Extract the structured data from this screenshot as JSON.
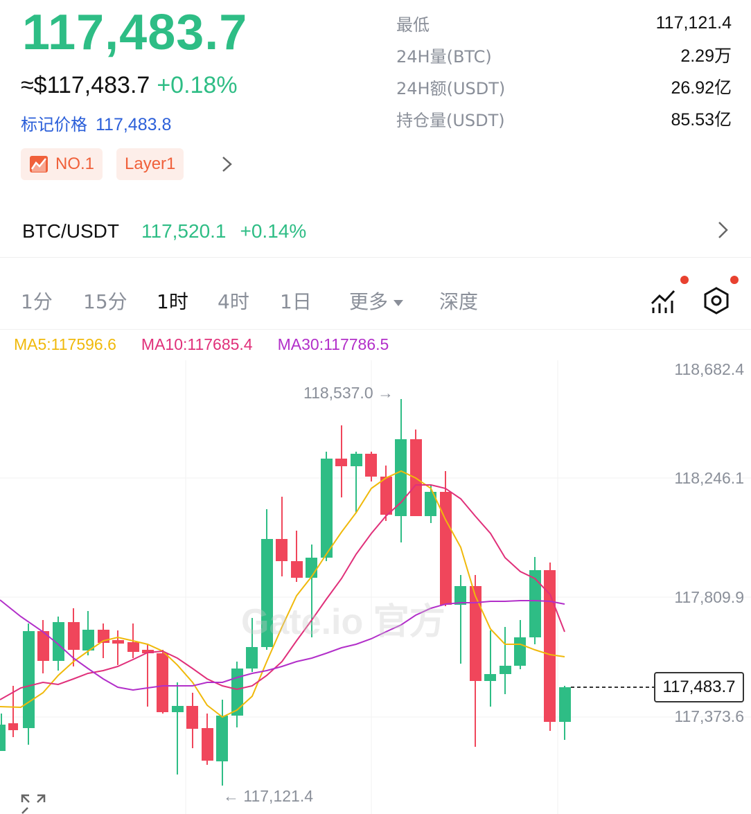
{
  "ticker": {
    "price": "117,483.7",
    "usd_price": "≈$117,483.7",
    "change_pct": "+0.18%",
    "mark_label": "标记价格",
    "mark_value": "117,483.8"
  },
  "tags": [
    {
      "label": "NO.1",
      "icon": "trending-chart-icon"
    },
    {
      "label": "Layer1"
    }
  ],
  "stats": [
    {
      "key": "最低",
      "value": "117,121.4"
    },
    {
      "key": "24H量(BTC)",
      "value": "2.29万"
    },
    {
      "key": "24H额(USDT)",
      "value": "26.92亿"
    },
    {
      "key": "持仓量(USDT)",
      "value": "85.53亿"
    }
  ],
  "pair": {
    "name": "BTC/USDT",
    "price": "117,520.1",
    "change": "+0.14%"
  },
  "intervals": {
    "items": [
      "1分",
      "15分",
      "1时",
      "4时",
      "1日",
      "更多",
      "深度"
    ],
    "active": "1时"
  },
  "ma": {
    "ma5": "MA5:117596.6",
    "ma10": "MA10:117685.4",
    "ma30": "MA30:117786.5",
    "colors": {
      "ma5": "#f0b90b",
      "ma10": "#e0307a",
      "ma30": "#b22fc9"
    }
  },
  "axis": {
    "labels": [
      "118,682.4",
      "118,246.1",
      "117,809.9",
      "117,373.6"
    ]
  },
  "annotations": {
    "high": "118,537.0 →",
    "low": "← 117,121.4",
    "last": "117,483.7"
  },
  "colors": {
    "up": "#2ebd85",
    "down": "#f0465b",
    "accent": "#2b5fd9"
  },
  "watermark": "Gate.io 官方"
}
